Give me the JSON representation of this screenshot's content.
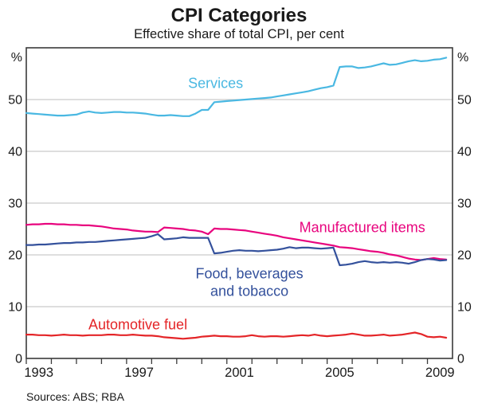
{
  "header": {
    "title": "CPI Categories",
    "subtitle": "Effective share of total CPI, per cent"
  },
  "footer": {
    "sources": "Sources: ABS; RBA"
  },
  "chart_data": {
    "type": "line",
    "title": "CPI Categories",
    "subtitle": "Effective share of total CPI, per cent",
    "xlabel": "",
    "ylabel": "%",
    "unit_symbol": "%",
    "xlim": [
      1993,
      2010
    ],
    "ylim": [
      0,
      60
    ],
    "yticks": [
      0,
      10,
      20,
      30,
      40,
      50
    ],
    "xticks_labeled": [
      1993,
      1997,
      2001,
      2005,
      2009
    ],
    "xtick_minor_step_years": 1,
    "grid": "horizontal",
    "legend_position": "inline-labels",
    "x_start": 1993.0,
    "x_step": 0.25,
    "style": {
      "grid_color": "#c9c9c9",
      "axis_color": "#3a3a3a",
      "text_color": "#1a1a1a"
    },
    "series": [
      {
        "name": "Services",
        "color": "#4ab8e2",
        "label_lines": [
          "Services"
        ],
        "label_pos": {
          "x": 2000.55,
          "y": 52.2
        },
        "values": [
          47.4,
          47.3,
          47.2,
          47.1,
          47.0,
          46.9,
          46.9,
          47.0,
          47.1,
          47.5,
          47.7,
          47.5,
          47.4,
          47.5,
          47.6,
          47.6,
          47.5,
          47.5,
          47.4,
          47.3,
          47.1,
          46.9,
          46.9,
          47.0,
          46.9,
          46.8,
          46.8,
          47.3,
          48.0,
          48.0,
          49.5,
          49.6,
          49.7,
          49.8,
          49.9,
          50.0,
          50.1,
          50.2,
          50.3,
          50.4,
          50.6,
          50.8,
          51.0,
          51.2,
          51.4,
          51.6,
          51.9,
          52.2,
          52.4,
          52.7,
          56.3,
          56.4,
          56.4,
          56.1,
          56.2,
          56.4,
          56.7,
          57.0,
          56.7,
          56.8,
          57.1,
          57.4,
          57.6,
          57.4,
          57.5,
          57.7,
          57.8,
          58.1
        ]
      },
      {
        "name": "Manufactured items",
        "color": "#e8047e",
        "label_lines": [
          "Manufactured items"
        ],
        "label_pos": {
          "x": 2006.4,
          "y": 24.4
        },
        "values": [
          25.8,
          25.9,
          25.9,
          26.0,
          26.0,
          25.9,
          25.9,
          25.8,
          25.8,
          25.7,
          25.7,
          25.6,
          25.5,
          25.3,
          25.1,
          25.0,
          24.9,
          24.7,
          24.6,
          24.5,
          24.5,
          24.4,
          25.3,
          25.2,
          25.1,
          25.0,
          24.8,
          24.7,
          24.5,
          24.0,
          25.1,
          25.0,
          25.0,
          24.9,
          24.8,
          24.7,
          24.5,
          24.3,
          24.1,
          23.9,
          23.7,
          23.4,
          23.2,
          23.0,
          22.8,
          22.6,
          22.4,
          22.2,
          22.0,
          21.8,
          21.5,
          21.4,
          21.3,
          21.1,
          20.9,
          20.7,
          20.6,
          20.4,
          20.1,
          19.9,
          19.6,
          19.3,
          19.1,
          19.0,
          19.2,
          19.4,
          19.2,
          19.1
        ]
      },
      {
        "name": "Food, beverages and tobacco",
        "color": "#34519c",
        "label_lines": [
          "Food, beverages",
          "and tobacco"
        ],
        "label_pos": {
          "x": 2001.9,
          "y": 15.5
        },
        "values": [
          21.9,
          21.9,
          22.0,
          22.0,
          22.1,
          22.2,
          22.3,
          22.3,
          22.4,
          22.4,
          22.5,
          22.5,
          22.6,
          22.7,
          22.8,
          22.9,
          23.0,
          23.1,
          23.2,
          23.3,
          23.6,
          24.0,
          23.0,
          23.1,
          23.2,
          23.4,
          23.3,
          23.3,
          23.3,
          23.3,
          20.3,
          20.4,
          20.6,
          20.8,
          20.9,
          20.8,
          20.8,
          20.7,
          20.8,
          20.9,
          21.0,
          21.2,
          21.5,
          21.3,
          21.4,
          21.4,
          21.3,
          21.2,
          21.3,
          21.4,
          18.0,
          18.1,
          18.3,
          18.6,
          18.8,
          18.6,
          18.5,
          18.6,
          18.5,
          18.6,
          18.5,
          18.3,
          18.6,
          19.0,
          19.2,
          19.1,
          18.9,
          19.0
        ]
      },
      {
        "name": "Automotive fuel",
        "color": "#e42528",
        "label_lines": [
          "Automotive fuel"
        ],
        "label_pos": {
          "x": 1997.45,
          "y": 5.6
        },
        "values": [
          4.6,
          4.6,
          4.5,
          4.5,
          4.4,
          4.5,
          4.6,
          4.5,
          4.5,
          4.4,
          4.5,
          4.5,
          4.5,
          4.6,
          4.6,
          4.5,
          4.5,
          4.6,
          4.5,
          4.4,
          4.4,
          4.3,
          4.1,
          4.0,
          3.9,
          3.8,
          3.9,
          4.0,
          4.2,
          4.3,
          4.4,
          4.3,
          4.3,
          4.2,
          4.2,
          4.3,
          4.5,
          4.3,
          4.2,
          4.3,
          4.3,
          4.2,
          4.3,
          4.4,
          4.5,
          4.4,
          4.6,
          4.4,
          4.3,
          4.4,
          4.5,
          4.6,
          4.8,
          4.6,
          4.4,
          4.4,
          4.5,
          4.6,
          4.4,
          4.5,
          4.6,
          4.8,
          5.0,
          4.7,
          4.2,
          4.1,
          4.2,
          4.0
        ]
      }
    ]
  }
}
